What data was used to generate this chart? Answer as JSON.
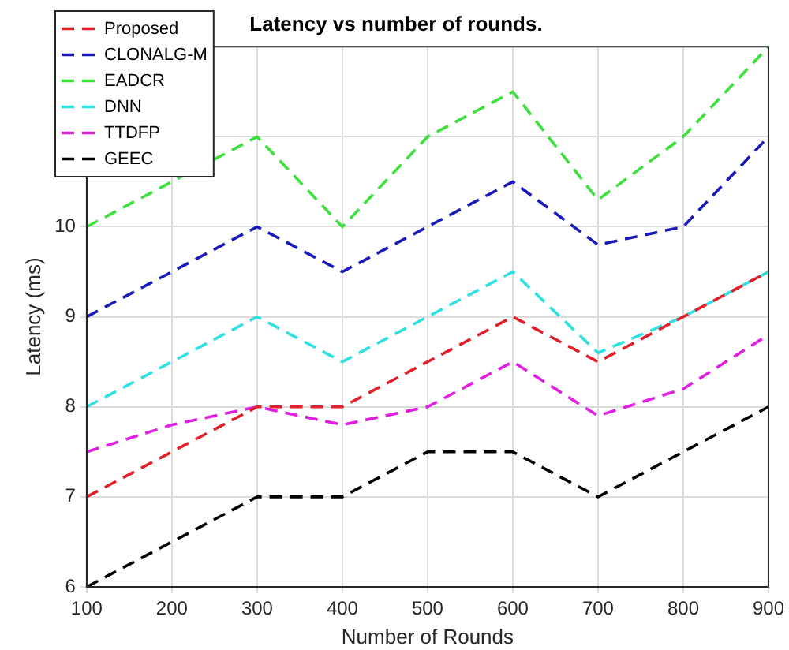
{
  "chart_data": {
    "type": "line",
    "title": "Latency vs number of rounds.",
    "xlabel": "Number of Rounds",
    "ylabel": "Latency (ms)",
    "x": [
      100,
      200,
      300,
      400,
      500,
      600,
      700,
      800,
      900
    ],
    "series": [
      {
        "name": "Proposed",
        "color": "#e0202a",
        "values": [
          7,
          7.5,
          8,
          8,
          8.5,
          9,
          8.5,
          9,
          9.5
        ]
      },
      {
        "name": "CLONALG-M",
        "color": "#1a1ab8",
        "values": [
          9,
          9.5,
          10,
          9.5,
          10,
          10.5,
          9.8,
          10,
          11
        ]
      },
      {
        "name": "EADCR",
        "color": "#3ee03e",
        "values": [
          10,
          10.5,
          11,
          10,
          11,
          11.5,
          10.3,
          11,
          12
        ]
      },
      {
        "name": "DNN",
        "color": "#30e0e0",
        "values": [
          8,
          8.5,
          9,
          8.5,
          9,
          9.5,
          8.6,
          9,
          9.5
        ]
      },
      {
        "name": "TTDFP",
        "color": "#e020e0",
        "values": [
          7.5,
          7.8,
          8,
          7.8,
          8,
          8.5,
          7.9,
          8.2,
          8.8
        ]
      },
      {
        "name": "GEEC",
        "color": "#000000",
        "values": [
          6,
          6.5,
          7,
          7,
          7.5,
          7.5,
          7,
          7.5,
          8
        ]
      }
    ],
    "xlim": [
      100,
      900
    ],
    "xticks": [
      100,
      200,
      300,
      400,
      500,
      600,
      700,
      800,
      900
    ],
    "ylim": [
      6,
      12
    ],
    "yticks": [
      6,
      7,
      8,
      9,
      10,
      {
        "value": 11,
        "label": null
      },
      {
        "value": 12,
        "label": null
      }
    ],
    "grid": true,
    "legend": "top left",
    "marker": "none",
    "line_style": "dashed"
  }
}
